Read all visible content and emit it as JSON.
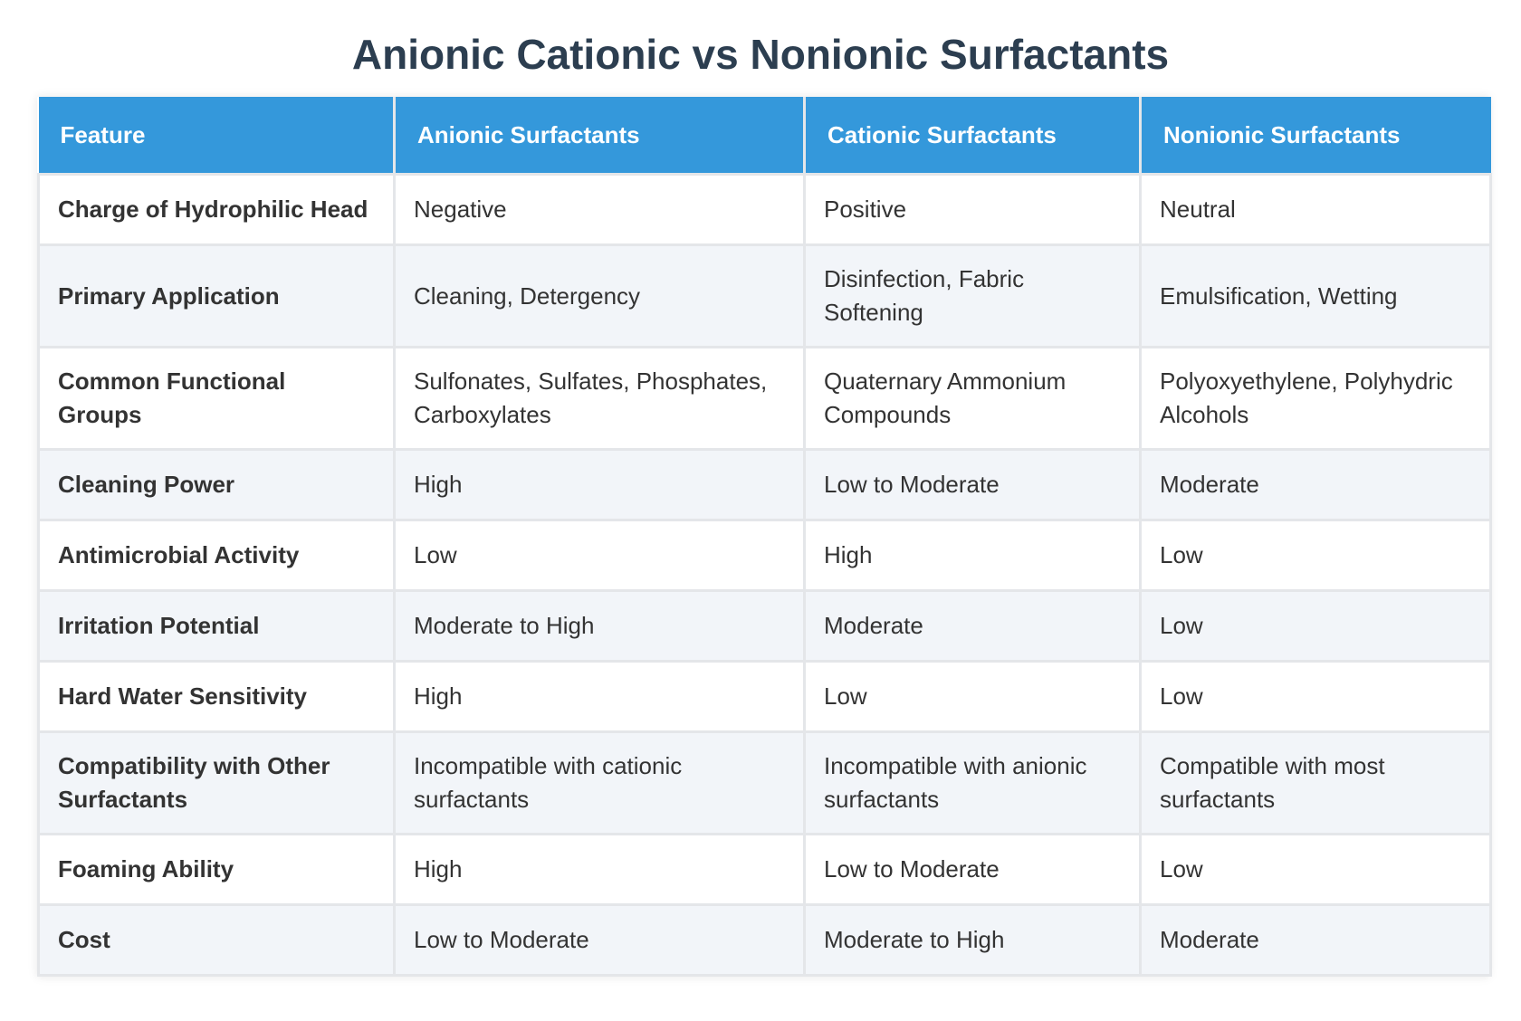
{
  "title": "Anionic Cationic vs Nonionic Surfactants",
  "table": {
    "headers": [
      "Feature",
      "Anionic Surfactants",
      "Cationic Surfactants",
      "Nonionic Surfactants"
    ],
    "rows": [
      [
        "Charge of Hydrophilic Head",
        "Negative",
        "Positive",
        "Neutral"
      ],
      [
        "Primary Application",
        "Cleaning, Detergency",
        "Disinfection, Fabric Softening",
        "Emulsification, Wetting"
      ],
      [
        "Common Functional Groups",
        "Sulfonates, Sulfates, Phosphates, Carboxylates",
        "Quaternary Ammonium Compounds",
        "Polyoxyethylene, Polyhydric Alcohols"
      ],
      [
        "Cleaning Power",
        "High",
        "Low to Moderate",
        "Moderate"
      ],
      [
        "Antimicrobial Activity",
        "Low",
        "High",
        "Low"
      ],
      [
        "Irritation Potential",
        "Moderate to High",
        "Moderate",
        "Low"
      ],
      [
        "Hard Water Sensitivity",
        "High",
        "Low",
        "Low"
      ],
      [
        "Compatibility with Other Surfactants",
        "Incompatible with cationic surfactants",
        "Incompatible with anionic surfactants",
        "Compatible with most surfactants"
      ],
      [
        "Foaming Ability",
        "High",
        "Low to Moderate",
        "Low"
      ],
      [
        "Cost",
        "Low to Moderate",
        "Moderate to High",
        "Moderate"
      ]
    ]
  },
  "colors": {
    "header_bg": "#3498db",
    "header_text": "#ffffff",
    "title_text": "#2c3e50",
    "row_alt_bg": "#f2f5f9",
    "border": "#e4e6e9"
  }
}
